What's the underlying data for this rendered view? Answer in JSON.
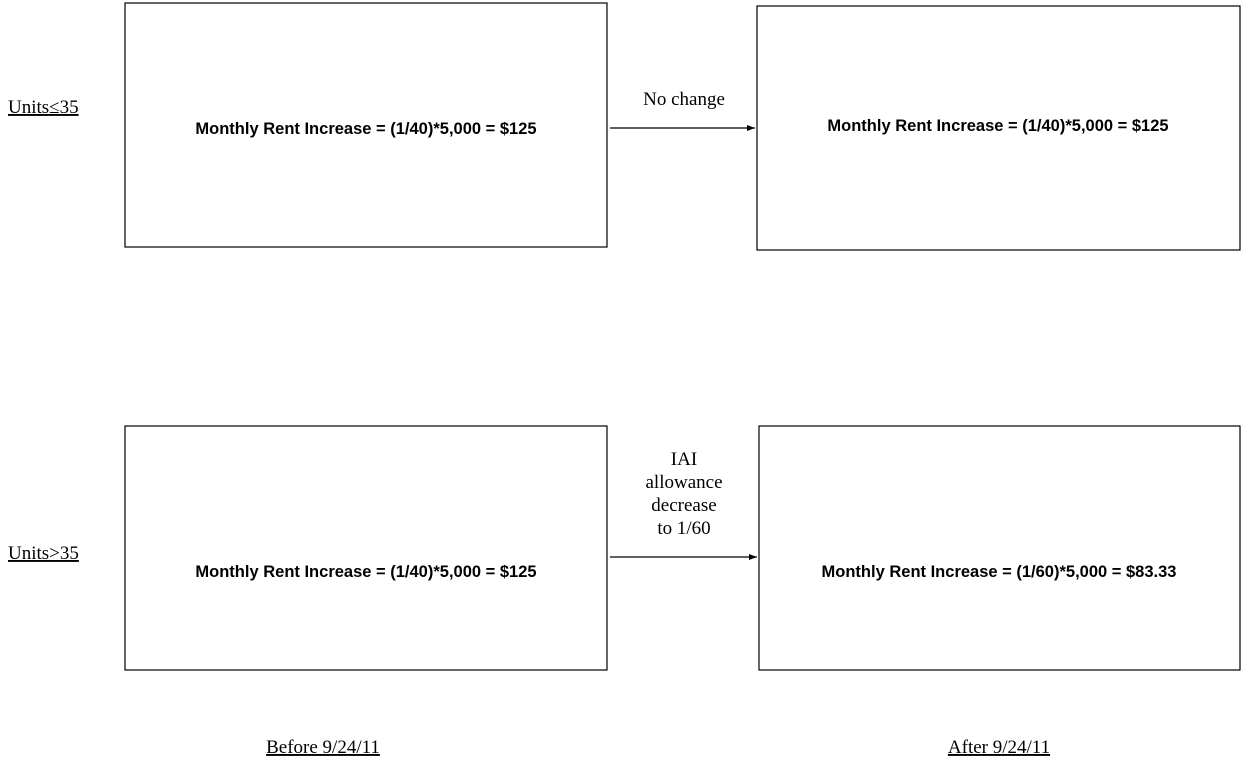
{
  "rows": [
    {
      "label": "Units≤35",
      "before": "Monthly Rent Increase = (1/40)*5,000 = $125",
      "after": "Monthly Rent Increase = (1/40)*5,000 = $125",
      "transition": [
        "No change"
      ]
    },
    {
      "label": "Units>35",
      "before": "Monthly Rent Increase = (1/40)*5,000 = $125",
      "after": "Monthly Rent Increase = (1/60)*5,000 = $83.33",
      "transition": [
        "IAI",
        "allowance",
        "decrease",
        "to 1/60"
      ]
    }
  ],
  "columns": [
    "Before 9/24/11",
    "After 9/24/11"
  ]
}
